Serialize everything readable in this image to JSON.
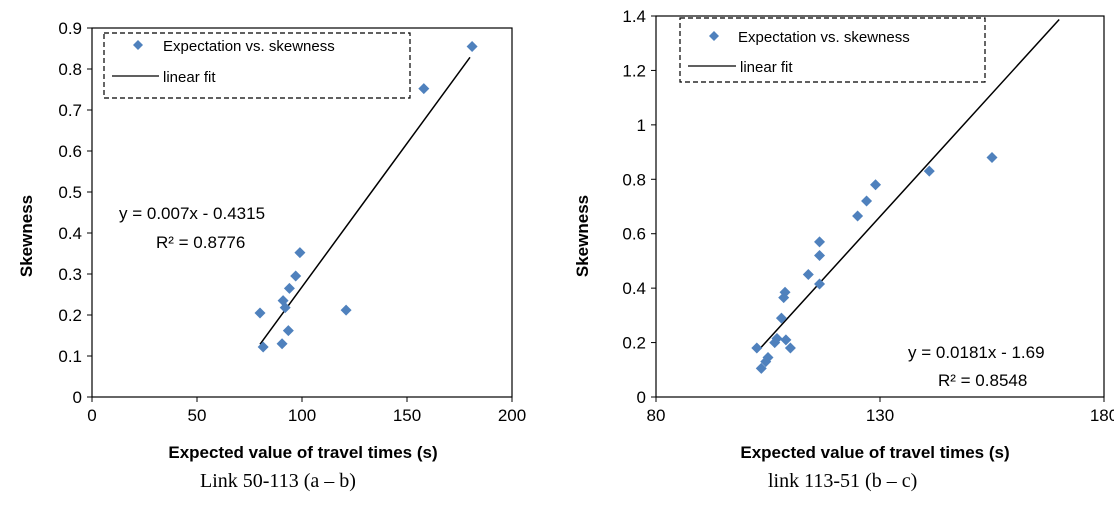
{
  "chart_data": [
    {
      "type": "scatter",
      "xlabel": "Expected value of travel times (s)",
      "ylabel": "Skewness",
      "xlim": [
        0,
        200
      ],
      "ylim": [
        0,
        0.9
      ],
      "x_ticks": [
        "0",
        "50",
        "100",
        "150",
        "200"
      ],
      "y_ticks": [
        "0",
        "0.1",
        "0.2",
        "0.3",
        "0.4",
        "0.5",
        "0.6",
        "0.7",
        "0.8",
        "0.9"
      ],
      "grid": false,
      "legend_placement": "top-left",
      "series": [
        {
          "name": "Expectation vs. skewness",
          "marker": "diamond",
          "color": "#4f81bd",
          "points": [
            [
              80,
              0.205
            ],
            [
              81.5,
              0.122
            ],
            [
              90.5,
              0.13
            ],
            [
              91,
              0.235
            ],
            [
              92,
              0.218
            ],
            [
              93.5,
              0.162
            ],
            [
              94,
              0.265
            ],
            [
              97,
              0.295
            ],
            [
              99,
              0.352
            ],
            [
              121,
              0.212
            ],
            [
              158,
              0.752
            ],
            [
              181,
              0.855
            ]
          ]
        },
        {
          "name": "linear fit",
          "type": "line",
          "color": "#000000",
          "points": [
            [
              80,
              0.1285
            ],
            [
              180,
              0.8285
            ]
          ]
        }
      ],
      "annotations": [
        "y = 0.007x - 0.4315",
        "R² = 0.8776"
      ],
      "caption": "Link 50-113 (a – b)"
    },
    {
      "type": "scatter",
      "xlabel": "Expected value of travel times (s)",
      "ylabel": "Skewness",
      "xlim": [
        80,
        180
      ],
      "ylim": [
        0,
        1.4
      ],
      "x_ticks": [
        "80",
        "130",
        "180"
      ],
      "y_ticks": [
        "0",
        "0.2",
        "0.4",
        "0.6",
        "0.8",
        "1",
        "1.2",
        "1.4"
      ],
      "grid": false,
      "legend_placement": "top-left",
      "series": [
        {
          "name": "Expectation vs. skewness",
          "marker": "diamond",
          "color": "#4f81bd",
          "points": [
            [
              102.5,
              0.18
            ],
            [
              103.5,
              0.105
            ],
            [
              104.5,
              0.13
            ],
            [
              105,
              0.145
            ],
            [
              106.5,
              0.2
            ],
            [
              107,
              0.215
            ],
            [
              108,
              0.29
            ],
            [
              108.5,
              0.365
            ],
            [
              108.8,
              0.385
            ],
            [
              109,
              0.21
            ],
            [
              110,
              0.18
            ],
            [
              114,
              0.45
            ],
            [
              116.5,
              0.415
            ],
            [
              116.5,
              0.52
            ],
            [
              116.5,
              0.57
            ],
            [
              125,
              0.665
            ],
            [
              127,
              0.72
            ],
            [
              129,
              0.78
            ],
            [
              141,
              0.83
            ],
            [
              155,
              0.88
            ]
          ]
        },
        {
          "name": "linear fit",
          "type": "line",
          "color": "#000000",
          "points": [
            [
              102.5,
              0.165
            ],
            [
              170,
              1.387
            ]
          ]
        }
      ],
      "annotations": [
        "y = 0.0181x - 1.69",
        "R² = 0.8548"
      ],
      "caption": "link 113-51 (b – c)"
    }
  ]
}
